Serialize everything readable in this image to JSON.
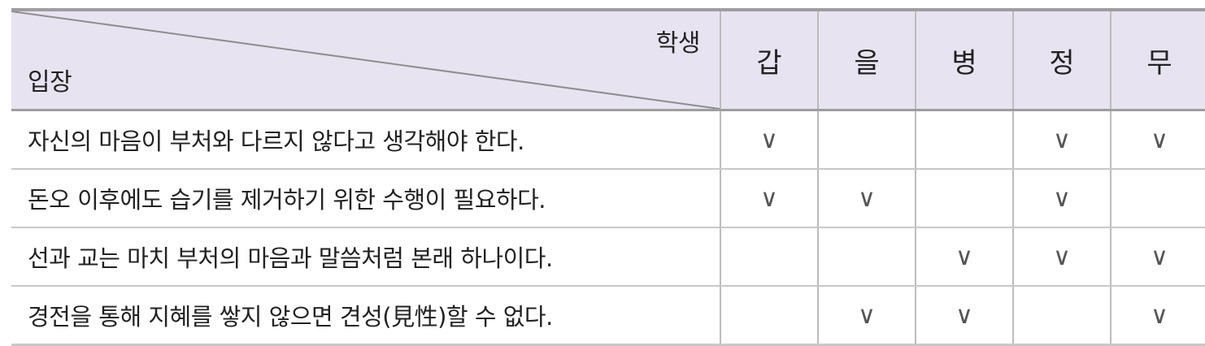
{
  "header": {
    "corner_top_label": "학생",
    "corner_bottom_label": "입장",
    "students": [
      "갑",
      "을",
      "병",
      "정",
      "무"
    ]
  },
  "check_mark": "∨",
  "rows": [
    {
      "stance": "자신의 마음이 부처와 다르지 않다고 생각해야 한다.",
      "checks": [
        true,
        false,
        false,
        true,
        true
      ]
    },
    {
      "stance": "돈오 이후에도 습기를 제거하기 위한 수행이 필요하다.",
      "checks": [
        true,
        true,
        false,
        true,
        false
      ]
    },
    {
      "stance": "선과 교는 마치 부처의 마음과 말씀처럼 본래 하나이다.",
      "checks": [
        false,
        false,
        true,
        true,
        true
      ]
    },
    {
      "stance": "경전을 통해 지혜를 쌓지 않으면 견성(見性)할 수 없다.",
      "checks": [
        false,
        true,
        true,
        false,
        true
      ]
    }
  ]
}
